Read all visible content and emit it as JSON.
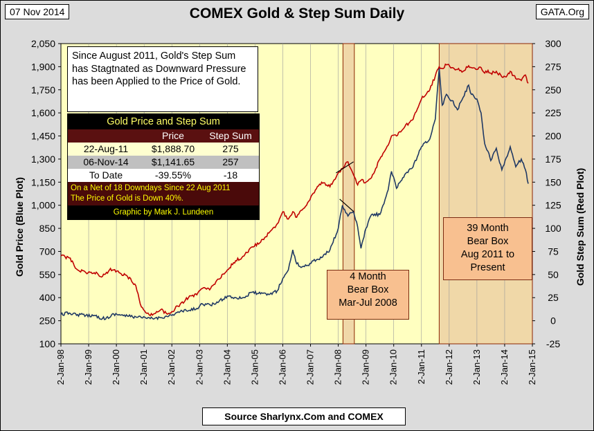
{
  "header": {
    "date": "07 Nov 2014",
    "title": "COMEX Gold & Step Sum Daily",
    "site": "GATA.Org"
  },
  "footer": {
    "source": "Source Sharlynx.Com and COMEX"
  },
  "note": "Since August 2011, Gold's Step Sum has Stagtnated as Downward Pressure has been Applied to the Price of Gold.",
  "table": {
    "title": "Gold Price and Step Sum",
    "col_price": "Price",
    "col_step": "Step Sum",
    "rows": [
      {
        "label": "22-Aug-11",
        "price": "$1,888.70",
        "step": "275"
      },
      {
        "label": "06-Nov-14",
        "price": "$1,141.65",
        "step": "257"
      },
      {
        "label": "To Date",
        "price": "-39.55%",
        "step": "-18"
      }
    ],
    "summary_line1": "On a Net of 18 Downdays Since 22 Aug 2011",
    "summary_line2": "The Price of Gold is Down 40%.",
    "credit": "Graphic by Mark J. Lundeen"
  },
  "callouts": {
    "bear_box_small": {
      "line1": "4 Month",
      "line2": "Bear Box",
      "line3": "Mar-Jul 2008"
    },
    "bear_box_large": {
      "line1": "39 Month",
      "line2": "Bear Box",
      "line3": "Aug 2011 to",
      "line4": "Present"
    }
  },
  "colors": {
    "plot_background": "#ffffc0",
    "bear_box_fill": "#f0d8a8",
    "gold_line": "#1f3864",
    "step_sum_line": "#c00000"
  },
  "chart_data": {
    "type": "line",
    "ylabel_left": "Gold Price  (Blue Plot)",
    "ylabel_right": "Gold Step Sum   (Red Plot)",
    "x_ticks": [
      "2-Jan-98",
      "2-Jan-99",
      "2-Jan-00",
      "2-Jan-01",
      "2-Jan-02",
      "2-Jan-03",
      "2-Jan-04",
      "2-Jan-05",
      "2-Jan-06",
      "2-Jan-07",
      "2-Jan-08",
      "2-Jan-09",
      "2-Jan-10",
      "2-Jan-11",
      "2-Jan-12",
      "2-Jan-13",
      "2-Jan-14",
      "2-Jan-15"
    ],
    "xlim": [
      1998.0,
      2015.0
    ],
    "ylim_left": [
      100,
      2050
    ],
    "left_ticks": [
      "100",
      "250",
      "400",
      "550",
      "700",
      "850",
      "1,000",
      "1,150",
      "1,300",
      "1,450",
      "1,600",
      "1,750",
      "1,900",
      "2,050"
    ],
    "ylim_right": [
      -25,
      300
    ],
    "right_ticks": [
      "-25",
      "0",
      "25",
      "50",
      "75",
      "100",
      "125",
      "150",
      "175",
      "200",
      "225",
      "250",
      "275",
      "300"
    ],
    "grid": "vertical",
    "bear_boxes": [
      {
        "x_start": 2008.17,
        "x_end": 2008.58
      },
      {
        "x_start": 2011.64,
        "x_end": 2015.0
      }
    ],
    "series": [
      {
        "name": "Gold Price (Blue Plot)",
        "axis": "left",
        "x": [
          1998.0,
          1998.3,
          1998.6,
          1998.9,
          1999.2,
          1999.5,
          1999.75,
          1999.9,
          2000.1,
          2000.4,
          2000.7,
          2000.9,
          2001.1,
          2001.3,
          2001.6,
          2001.8,
          2002.0,
          2002.3,
          2002.6,
          2002.9,
          2003.1,
          2003.4,
          2003.7,
          2004.0,
          2004.3,
          2004.6,
          2004.9,
          2005.2,
          2005.5,
          2005.8,
          2006.0,
          2006.2,
          2006.36,
          2006.5,
          2006.7,
          2006.9,
          2007.1,
          2007.4,
          2007.7,
          2008.0,
          2008.15,
          2008.35,
          2008.55,
          2008.7,
          2008.82,
          2009.0,
          2009.2,
          2009.5,
          2009.8,
          2009.92,
          2010.1,
          2010.4,
          2010.7,
          2011.0,
          2011.3,
          2011.5,
          2011.64,
          2011.75,
          2011.9,
          2012.1,
          2012.3,
          2012.5,
          2012.7,
          2012.8,
          2013.0,
          2013.15,
          2013.28,
          2013.4,
          2013.5,
          2013.7,
          2013.9,
          2014.1,
          2014.2,
          2014.4,
          2014.6,
          2014.75,
          2014.85
        ],
        "y": [
          290,
          300,
          290,
          285,
          285,
          265,
          270,
          295,
          290,
          280,
          275,
          270,
          265,
          265,
          270,
          280,
          285,
          310,
          315,
          330,
          360,
          350,
          375,
          410,
          400,
          400,
          435,
          425,
          420,
          445,
          525,
          580,
          710,
          620,
          600,
          610,
          640,
          660,
          710,
          850,
          1000,
          930,
          960,
          860,
          720,
          850,
          940,
          940,
          1100,
          1220,
          1110,
          1200,
          1250,
          1380,
          1430,
          1560,
          1890,
          1650,
          1720,
          1680,
          1620,
          1700,
          1780,
          1720,
          1690,
          1600,
          1400,
          1350,
          1290,
          1370,
          1230,
          1320,
          1380,
          1250,
          1300,
          1230,
          1140
        ]
      },
      {
        "name": "Gold Step Sum (Red Plot)",
        "axis": "right",
        "x": [
          1998.0,
          1998.3,
          1998.6,
          1998.9,
          1999.2,
          1999.5,
          1999.75,
          1999.9,
          2000.1,
          2000.4,
          2000.7,
          2000.9,
          2001.1,
          2001.3,
          2001.6,
          2001.8,
          2002.0,
          2002.3,
          2002.6,
          2002.9,
          2003.1,
          2003.4,
          2003.7,
          2004.0,
          2004.3,
          2004.6,
          2004.9,
          2005.2,
          2005.5,
          2005.8,
          2006.0,
          2006.2,
          2006.36,
          2006.5,
          2006.7,
          2006.9,
          2007.1,
          2007.4,
          2007.7,
          2008.0,
          2008.15,
          2008.35,
          2008.55,
          2008.7,
          2008.82,
          2009.0,
          2009.2,
          2009.5,
          2009.8,
          2009.92,
          2010.1,
          2010.4,
          2010.7,
          2011.0,
          2011.3,
          2011.5,
          2011.64,
          2011.75,
          2011.9,
          2012.1,
          2012.3,
          2012.5,
          2012.7,
          2012.8,
          2013.0,
          2013.15,
          2013.28,
          2013.4,
          2013.5,
          2013.7,
          2013.9,
          2014.1,
          2014.2,
          2014.4,
          2014.6,
          2014.75,
          2014.85
        ],
        "y": [
          70,
          68,
          55,
          52,
          52,
          48,
          55,
          55,
          52,
          48,
          38,
          15,
          8,
          6,
          12,
          8,
          10,
          18,
          25,
          28,
          35,
          35,
          45,
          55,
          65,
          70,
          80,
          85,
          95,
          105,
          118,
          110,
          118,
          112,
          120,
          128,
          138,
          150,
          145,
          160,
          165,
          172,
          158,
          147,
          152,
          150,
          155,
          175,
          190,
          200,
          200,
          210,
          218,
          240,
          250,
          265,
          275,
          273,
          277,
          274,
          272,
          270,
          276,
          274,
          272,
          274,
          268,
          271,
          268,
          270,
          264,
          266,
          270,
          262,
          260,
          266,
          257
        ]
      }
    ]
  }
}
